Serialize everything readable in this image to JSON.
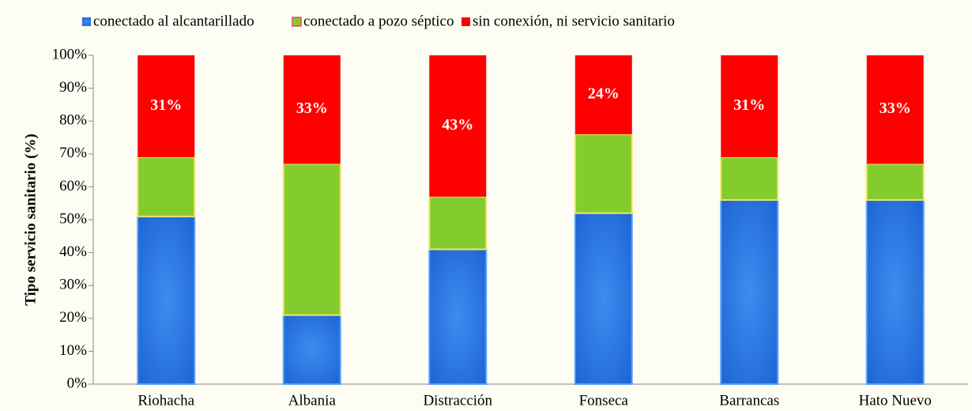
{
  "chart_data": {
    "type": "stacked_bar",
    "y_label": "Tipo servicio sanitario (%)",
    "categories": [
      "Riohacha",
      "Albania",
      "Distracción",
      "Fonseca",
      "Barrancas",
      "Hato Nuevo"
    ],
    "series": [
      {
        "name": "conectado al alcantarillado",
        "color": "#1a5fcf",
        "values": [
          51,
          21,
          41,
          52,
          56,
          56
        ]
      },
      {
        "name": "conectado a pozo séptico",
        "color": "#84cc2e",
        "values": [
          18,
          46,
          16,
          24,
          13,
          11
        ]
      },
      {
        "name": "sin conexión, ni servicio sanitario",
        "color": "#ff0000",
        "values": [
          31,
          33,
          43,
          24,
          31,
          33
        ],
        "value_labels": [
          "31%",
          "33%",
          "43%",
          "24%",
          "31%",
          "33%"
        ]
      }
    ],
    "ylim": [
      0,
      100
    ],
    "yticks": [
      {
        "value": 0,
        "label": "0%"
      },
      {
        "value": 10,
        "label": "10%"
      },
      {
        "value": 20,
        "label": "20%"
      },
      {
        "value": 30,
        "label": "30%"
      },
      {
        "value": 40,
        "label": "40%"
      },
      {
        "value": 50,
        "label": "50%"
      },
      {
        "value": 60,
        "label": "60%"
      },
      {
        "value": 70,
        "label": "70%"
      },
      {
        "value": 80,
        "label": "80%"
      },
      {
        "value": 90,
        "label": "90%"
      },
      {
        "value": 100,
        "label": "100%"
      }
    ],
    "legend": "top"
  }
}
